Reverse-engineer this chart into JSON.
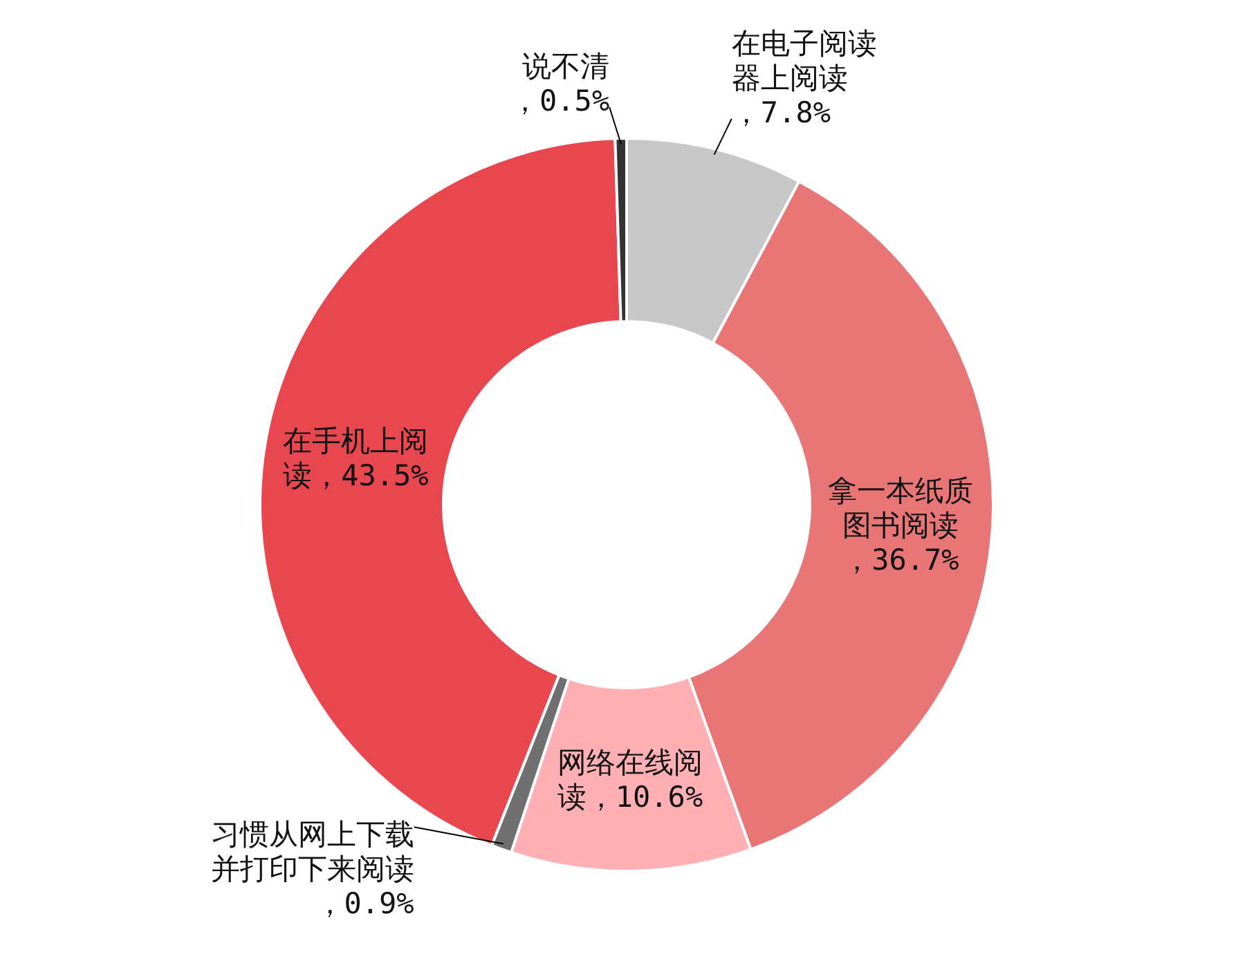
{
  "chart_data": {
    "type": "donut",
    "categories": [
      "在电子阅读器上阅读",
      "拿一本纸质图书阅读",
      "网络在线阅读",
      "习惯从网上下载并打印下来阅读",
      "在手机上阅读",
      "说不清"
    ],
    "values": [
      7.8,
      36.7,
      10.6,
      0.9,
      43.5,
      0.5
    ],
    "colors": [
      "#c8c8c8",
      "#e97676",
      "#ffb0b5",
      "#707070",
      "#e8474f",
      "#333333"
    ],
    "value_labels": [
      "，7.8%",
      "，36.7%",
      "，10.6%",
      "，0.9%",
      "，43.5%",
      "，0.5%"
    ]
  }
}
